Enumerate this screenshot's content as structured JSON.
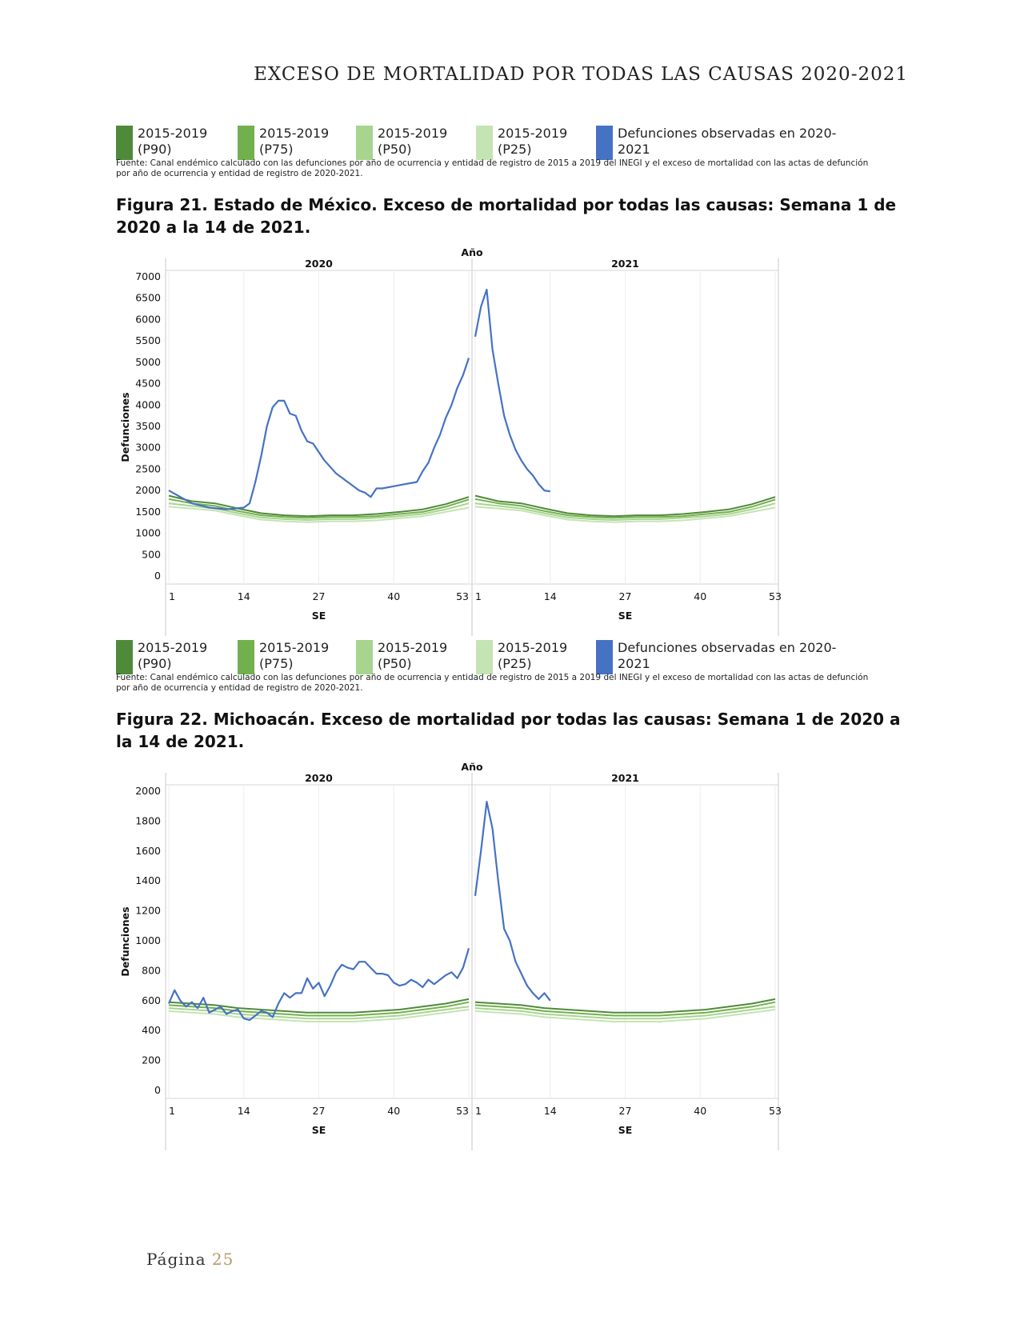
{
  "page": {
    "header": "EXCESO DE MORTALIDAD POR TODAS LAS CAUSAS 2020-2021",
    "footer_label": "Página",
    "footer_number": "25"
  },
  "legend": {
    "items": [
      {
        "label": "2015-2019\n(P90)",
        "color": "#4f8a3a"
      },
      {
        "label": "2015-2019\n(P75)",
        "color": "#72b04d"
      },
      {
        "label": "2015-2019\n(P50)",
        "color": "#a7d48e"
      },
      {
        "label": "2015-2019\n(P25)",
        "color": "#c4e4b3"
      },
      {
        "label": "Defunciones observadas en 2020-\n2021",
        "color": "#4672c4"
      }
    ],
    "source": "Fuente: Canal endémico calculado con las defunciones por año de ocurrencia y entidad de registro de 2015 a 2019 del INEGI y el exceso de mortalidad con las actas de defunción por año de ocurrencia y entidad de registro de 2020-2021."
  },
  "figures": [
    {
      "title": "Figura 21. Estado de México. Exceso de mortalidad por todas las causas: Semana 1 de 2020 a la 14 de 2021."
    },
    {
      "title": "Figura 22. Michoacán. Exceso de mortalidad por todas las causas: Semana 1 de 2020 a la 14 de 2021."
    }
  ],
  "chart_data": [
    {
      "type": "line",
      "title": "",
      "top_label": "Año",
      "panels": [
        "2020",
        "2021"
      ],
      "xlabel": "SE",
      "ylabel": "Defunciones",
      "ylim": [
        0,
        7000
      ],
      "yticks": [
        0,
        500,
        1000,
        1500,
        2000,
        2500,
        3000,
        3500,
        4000,
        4500,
        5000,
        5500,
        6000,
        6500,
        7000
      ],
      "xticks": [
        1,
        14,
        27,
        40,
        53
      ],
      "grid": true,
      "series": [
        {
          "name": "2015-2019 (P90)",
          "color": "#4f8a3a",
          "x": [
            1,
            5,
            9,
            13,
            17,
            21,
            25,
            29,
            33,
            37,
            41,
            45,
            49,
            53
          ],
          "values": [
            1880,
            1750,
            1700,
            1580,
            1470,
            1420,
            1400,
            1420,
            1420,
            1450,
            1500,
            1560,
            1680,
            1850
          ]
        },
        {
          "name": "2015-2019 (P75)",
          "color": "#72b04d",
          "x": [
            1,
            5,
            9,
            13,
            17,
            21,
            25,
            29,
            33,
            37,
            41,
            45,
            49,
            53
          ],
          "values": [
            1800,
            1700,
            1640,
            1520,
            1420,
            1380,
            1360,
            1380,
            1380,
            1400,
            1450,
            1500,
            1620,
            1790
          ]
        },
        {
          "name": "2015-2019 (P50)",
          "color": "#a7d48e",
          "x": [
            1,
            5,
            9,
            13,
            17,
            21,
            25,
            29,
            33,
            37,
            41,
            45,
            49,
            53
          ],
          "values": [
            1700,
            1640,
            1580,
            1470,
            1370,
            1330,
            1310,
            1330,
            1330,
            1360,
            1400,
            1450,
            1560,
            1700
          ]
        },
        {
          "name": "2015-2019 (P25)",
          "color": "#c4e4b3",
          "x": [
            1,
            5,
            9,
            13,
            17,
            21,
            25,
            29,
            33,
            37,
            41,
            45,
            49,
            53
          ],
          "values": [
            1620,
            1580,
            1530,
            1420,
            1320,
            1280,
            1260,
            1280,
            1280,
            1300,
            1350,
            1400,
            1500,
            1600
          ]
        },
        {
          "name": "Defunciones observadas en 2020-2021",
          "color": "#4672c4",
          "segments": [
            {
              "panel": 0,
              "x": [
                1,
                3,
                5,
                8,
                11,
                14,
                15,
                16,
                17,
                18,
                19,
                20,
                21,
                22,
                23,
                24,
                25,
                26,
                27,
                28,
                30,
                32,
                34,
                35,
                36,
                37,
                38,
                40,
                42,
                44,
                45,
                46,
                47,
                48,
                49,
                50,
                51,
                52,
                53
              ],
              "values": [
                2000,
                1850,
                1700,
                1600,
                1560,
                1600,
                1700,
                2200,
                2800,
                3500,
                3950,
                4100,
                4100,
                3800,
                3750,
                3400,
                3150,
                3100,
                2900,
                2700,
                2400,
                2200,
                2000,
                1950,
                1850,
                2050,
                2050,
                2100,
                2150,
                2200,
                2450,
                2650,
                3000,
                3300,
                3700,
                4000,
                4400,
                4700,
                5100
              ]
            },
            {
              "panel": 1,
              "x": [
                1,
                2,
                3,
                4,
                5,
                6,
                7,
                8,
                9,
                10,
                11,
                12,
                13,
                14
              ],
              "values": [
                5600,
                6300,
                6700,
                5300,
                4500,
                3750,
                3300,
                2950,
                2700,
                2500,
                2350,
                2150,
                2000,
                1980
              ]
            }
          ]
        }
      ]
    },
    {
      "type": "line",
      "title": "",
      "top_label": "Año",
      "panels": [
        "2020",
        "2021"
      ],
      "xlabel": "SE",
      "ylabel": "Defunciones",
      "ylim": [
        0,
        2000
      ],
      "yticks": [
        0,
        200,
        400,
        600,
        800,
        1000,
        1200,
        1400,
        1600,
        1800,
        2000
      ],
      "xticks": [
        1,
        14,
        27,
        40,
        53
      ],
      "grid": true,
      "series": [
        {
          "name": "2015-2019 (P90)",
          "color": "#4f8a3a",
          "x": [
            1,
            5,
            9,
            13,
            17,
            21,
            25,
            29,
            33,
            37,
            41,
            45,
            49,
            53
          ],
          "values": [
            590,
            580,
            570,
            550,
            540,
            530,
            520,
            520,
            520,
            530,
            540,
            560,
            580,
            610
          ]
        },
        {
          "name": "2015-2019 (P75)",
          "color": "#72b04d",
          "x": [
            1,
            5,
            9,
            13,
            17,
            21,
            25,
            29,
            33,
            37,
            41,
            45,
            49,
            53
          ],
          "values": [
            570,
            560,
            550,
            530,
            520,
            510,
            500,
            500,
            500,
            510,
            520,
            540,
            560,
            590
          ]
        },
        {
          "name": "2015-2019 (P50)",
          "color": "#a7d48e",
          "x": [
            1,
            5,
            9,
            13,
            17,
            21,
            25,
            29,
            33,
            37,
            41,
            45,
            49,
            53
          ],
          "values": [
            550,
            540,
            530,
            510,
            500,
            490,
            480,
            480,
            480,
            490,
            500,
            520,
            540,
            560
          ]
        },
        {
          "name": "2015-2019 (P25)",
          "color": "#c4e4b3",
          "x": [
            1,
            5,
            9,
            13,
            17,
            21,
            25,
            29,
            33,
            37,
            41,
            45,
            49,
            53
          ],
          "values": [
            530,
            520,
            510,
            490,
            480,
            470,
            460,
            460,
            460,
            470,
            480,
            500,
            520,
            540
          ]
        },
        {
          "name": "Defunciones observadas en 2020-2021",
          "color": "#4672c4",
          "segments": [
            {
              "panel": 0,
              "x": [
                1,
                2,
                3,
                4,
                5,
                6,
                7,
                8,
                9,
                10,
                11,
                12,
                13,
                14,
                15,
                16,
                17,
                18,
                19,
                20,
                21,
                22,
                23,
                24,
                25,
                26,
                27,
                28,
                29,
                30,
                31,
                32,
                33,
                34,
                35,
                36,
                37,
                38,
                39,
                40,
                41,
                42,
                43,
                44,
                45,
                46,
                47,
                48,
                49,
                50,
                51,
                52,
                53
              ],
              "values": [
                580,
                670,
                600,
                560,
                590,
                550,
                620,
                520,
                540,
                560,
                510,
                530,
                540,
                480,
                470,
                500,
                530,
                520,
                490,
                580,
                650,
                620,
                650,
                650,
                750,
                680,
                720,
                630,
                700,
                790,
                840,
                820,
                810,
                860,
                860,
                820,
                780,
                780,
                770,
                720,
                700,
                710,
                740,
                720,
                690,
                740,
                710,
                740,
                770,
                790,
                750,
                820,
                950
              ]
            },
            {
              "panel": 1,
              "x": [
                1,
                2,
                3,
                4,
                5,
                6,
                7,
                8,
                9,
                10,
                11,
                12,
                13,
                14
              ],
              "values": [
                1300,
                1600,
                1930,
                1750,
                1400,
                1080,
                1000,
                860,
                780,
                700,
                650,
                610,
                650,
                600
              ]
            }
          ]
        }
      ]
    }
  ]
}
